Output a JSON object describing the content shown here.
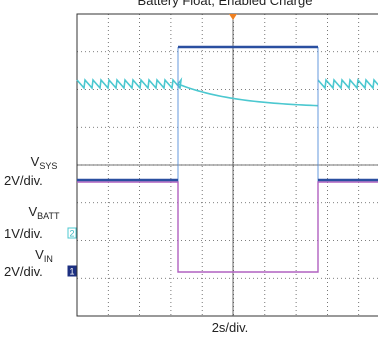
{
  "title": "Battery Float, Enabled Charge",
  "channels": [
    {
      "name": {
        "main": "V",
        "sub": "SYS"
      },
      "scale": "2V/div."
    },
    {
      "name": {
        "main": "V",
        "sub": "BATT"
      },
      "scale": "1V/div.",
      "marker": "2"
    },
    {
      "name": {
        "main": "V",
        "sub": "IN"
      },
      "scale": "2V/div.",
      "marker": "1"
    }
  ],
  "time_scale": "2s/div."
}
